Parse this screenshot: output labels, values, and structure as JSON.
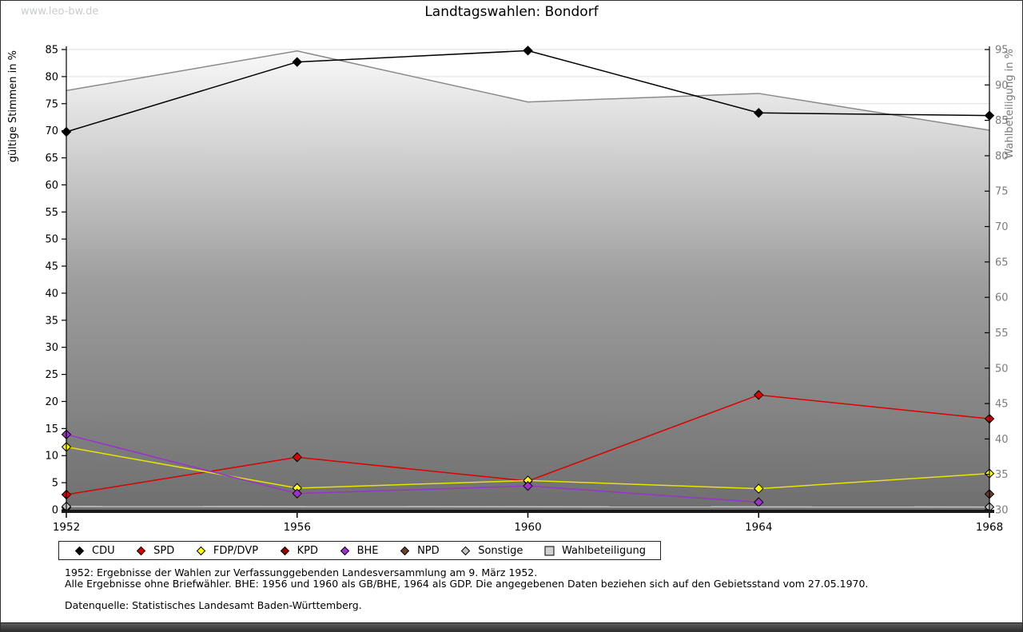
{
  "watermark": "www.leo-bw.de",
  "title": "Landtagswahlen: Bondorf",
  "chart_data": {
    "type": "line",
    "title": "Landtagswahlen: Bondorf",
    "categories": [
      "1952",
      "1956",
      "1960",
      "1964",
      "1968"
    ],
    "y_left": {
      "label": "gültige Stimmen in %",
      "min": 0,
      "max": 85,
      "tick_step": 5
    },
    "y_right": {
      "label": "Wahlbeteiligung in %",
      "min": 30,
      "max": 95,
      "tick_step": 5
    },
    "grid": true,
    "legend_position": "bottom",
    "series": [
      {
        "name": "CDU",
        "axis": "left",
        "color": "#000000",
        "marker": "diamond",
        "marker_fill": "#000000",
        "values": [
          69.8,
          82.7,
          84.8,
          73.3,
          72.8
        ]
      },
      {
        "name": "SPD",
        "axis": "left",
        "color": "#dd0000",
        "marker": "diamond",
        "marker_fill": "#dd0000",
        "values": [
          2.8,
          9.7,
          5.3,
          21.2,
          16.8
        ]
      },
      {
        "name": "FDP/DVP",
        "axis": "left",
        "color": "#e8e400",
        "marker": "diamond",
        "marker_fill": "#ffff00",
        "values": [
          11.6,
          4.0,
          5.4,
          3.9,
          6.7
        ]
      },
      {
        "name": "KPD",
        "axis": "left",
        "color": "#990000",
        "marker": "diamond",
        "marker_fill": "#990000",
        "values": [
          0.4,
          null,
          null,
          null,
          null
        ]
      },
      {
        "name": "BHE",
        "axis": "left",
        "color": "#9933cc",
        "marker": "diamond",
        "marker_fill": "#9933cc",
        "values": [
          13.9,
          3.0,
          4.4,
          1.4,
          null
        ]
      },
      {
        "name": "NPD",
        "axis": "left",
        "color": "#6b4228",
        "marker": "diamond",
        "marker_fill": "#6b4228",
        "values": [
          null,
          null,
          null,
          null,
          2.9
        ]
      },
      {
        "name": "Sonstige",
        "axis": "left",
        "color": "#c8c8c8",
        "marker": "diamond",
        "marker_fill": "#c4c4c4",
        "values": [
          0.6,
          null,
          null,
          null,
          0.5
        ]
      },
      {
        "name": "Wahlbeteiligung",
        "axis": "right",
        "type": "area",
        "color": "#8a8a8a",
        "marker": "square",
        "marker_fill": "#d0d0d0",
        "fill_top": "#f9f9f9",
        "fill_mid": "#9e9e9e",
        "fill_bottom": "#6f6f6f",
        "values": [
          89.2,
          94.8,
          87.6,
          88.8,
          83.6
        ]
      }
    ]
  },
  "footnotes": {
    "line1": "1952: Ergebnisse der Wahlen zur Verfassunggebenden Landesversammlung am 9. März 1952.",
    "line2": "Alle Ergebnisse ohne Briefwähler. BHE: 1956 und 1960 als GB/BHE, 1964 als GDP. Die angegebenen Daten beziehen sich auf den Gebietsstand vom 27.05.1970.",
    "source": "Datenquelle: Statistisches Landesamt Baden-Württemberg."
  }
}
